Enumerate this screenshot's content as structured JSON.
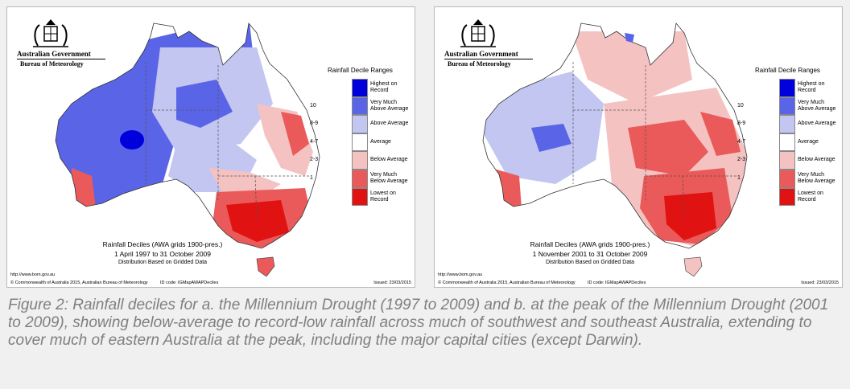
{
  "colors": {
    "highest": "#0000dd",
    "very_much_above": "#5a64e6",
    "above": "#c2c6f0",
    "average": "#ffffff",
    "below": "#f5c2c2",
    "very_much_below": "#ea5a5a",
    "lowest": "#e01212",
    "figure_caption": "#7f7f7f"
  },
  "panels": [
    {
      "agency": "Australian Government",
      "bureau": "Bureau of Meteorology",
      "title": "Rainfall Deciles (AWA grids 1900-pres.)",
      "period": "1 April 1997 to 31 October 2009",
      "note": "Distribution Based on Gridded Data",
      "url": "http://www.bom.gov.au",
      "copyright": "© Commonwealth of Australia 2015, Australian Bureau of Meteorology",
      "id_code": "ID code: IGMapAWAPDeciles",
      "issued": "Issued: 23/03/2015"
    },
    {
      "agency": "Australian Government",
      "bureau": "Bureau of Meteorology",
      "title": "Rainfall Deciles (AWA grids 1900-pres.)",
      "period": "1 November 2001 to 31 October 2009",
      "note": "Distribution Based on Gridded Data",
      "url": "http://www.bom.gov.au",
      "copyright": "© Commonwealth of Australia 2015, Australian Bureau of Meteorology",
      "id_code": "ID code: IGMapAWAPDeciles",
      "issued": "Issued: 23/03/2015"
    }
  ],
  "legend": {
    "title": "Rainfall Decile Ranges",
    "codes": [
      "",
      "10",
      "8-9",
      "4-7",
      "2-3",
      "1",
      ""
    ],
    "labels": [
      "Highest on\nRecord",
      "Very Much\nAbove Average",
      "Above Average",
      "Average",
      "Below Average",
      "Very Much\nBelow Average",
      "Lowest on\nRecord"
    ]
  },
  "figure_caption": "Figure 2: Rainfall deciles for a. the Millennium Drought (1997 to 2009) and b. at the peak of the Millennium Drought (2001 to 2009), showing below-average to record-low rainfall across much of southwest and southeast Australia, extending to cover much of eastern Australia at the peak, including the major capital cities (except Darwin)."
}
